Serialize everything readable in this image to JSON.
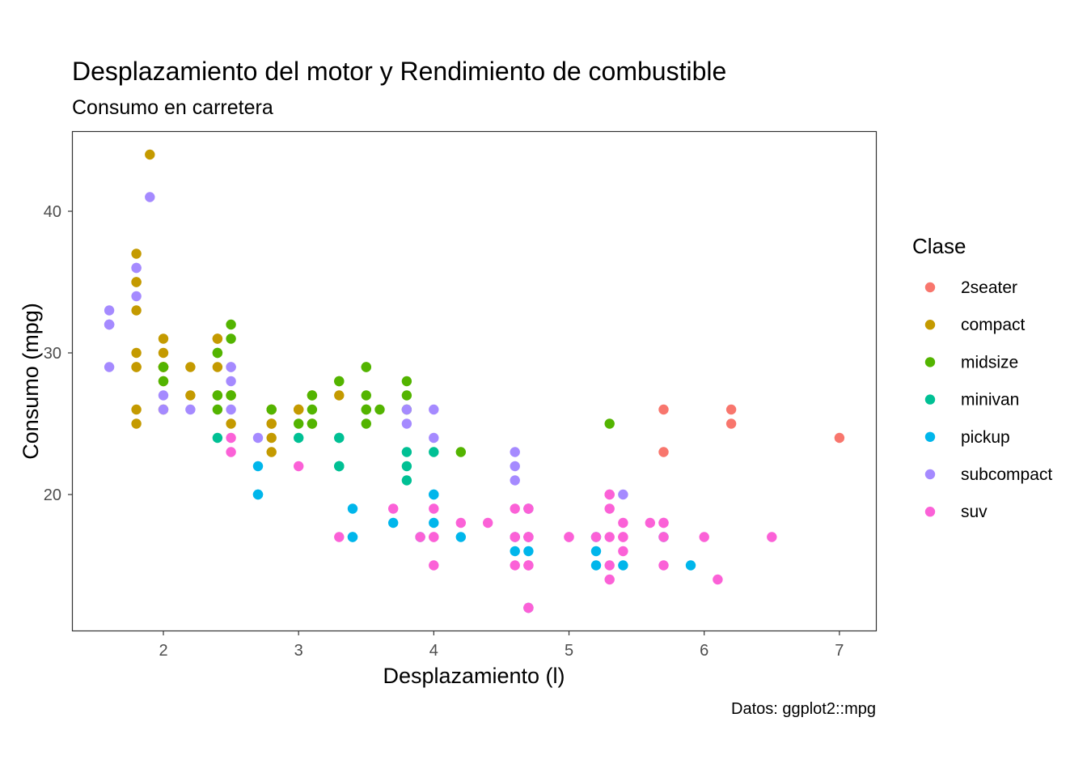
{
  "chart_data": {
    "type": "scatter",
    "title": "Desplazamiento del motor y Rendimiento de combustible",
    "subtitle": "Consumo en carretera",
    "xlabel": "Desplazamiento (l)",
    "ylabel": "Consumo (mpg)",
    "caption": "Datos: ggplot2::mpg",
    "xlim": [
      1.33,
      7.27
    ],
    "ylim": [
      10.4,
      45.6
    ],
    "x_ticks": [
      2,
      3,
      4,
      5,
      6,
      7
    ],
    "y_ticks": [
      20,
      30,
      40
    ],
    "grid": false,
    "legend": {
      "title": "Clase",
      "position": "right"
    },
    "series": [
      {
        "name": "2seater",
        "color": "#F8766D",
        "points": [
          [
            5.7,
            26
          ],
          [
            5.7,
            23
          ],
          [
            6.2,
            26
          ],
          [
            6.2,
            25
          ],
          [
            7.0,
            24
          ]
        ]
      },
      {
        "name": "compact",
        "color": "#C49A00",
        "points": [
          [
            1.8,
            29
          ],
          [
            1.8,
            29
          ],
          [
            2.0,
            31
          ],
          [
            2.0,
            30
          ],
          [
            2.8,
            26
          ],
          [
            2.8,
            26
          ],
          [
            3.1,
            27
          ],
          [
            1.8,
            26
          ],
          [
            1.8,
            25
          ],
          [
            2.0,
            28
          ],
          [
            2.0,
            29
          ],
          [
            2.8,
            25
          ],
          [
            2.8,
            25
          ],
          [
            3.1,
            25
          ],
          [
            2.2,
            27
          ],
          [
            2.2,
            29
          ],
          [
            2.4,
            31
          ],
          [
            2.4,
            31
          ],
          [
            3.0,
            26
          ],
          [
            3.0,
            26
          ],
          [
            3.3,
            27
          ],
          [
            1.8,
            30
          ],
          [
            1.8,
            33
          ],
          [
            1.8,
            35
          ],
          [
            1.8,
            37
          ],
          [
            1.8,
            35
          ],
          [
            2.0,
            29
          ],
          [
            2.0,
            26
          ],
          [
            2.0,
            29
          ],
          [
            2.0,
            29
          ],
          [
            2.8,
            24
          ],
          [
            1.9,
            44
          ],
          [
            2.0,
            29
          ],
          [
            2.5,
            27
          ],
          [
            2.5,
            27
          ],
          [
            2.5,
            25
          ],
          [
            2.8,
            23
          ],
          [
            2.4,
            27
          ],
          [
            2.4,
            29
          ]
        ]
      },
      {
        "name": "midsize",
        "color": "#53B400",
        "points": [
          [
            2.8,
            26
          ],
          [
            3.1,
            26
          ],
          [
            4.2,
            23
          ],
          [
            2.4,
            27
          ],
          [
            2.4,
            30
          ],
          [
            3.3,
            28
          ],
          [
            3.5,
            26
          ],
          [
            3.5,
            29
          ],
          [
            3.5,
            27
          ],
          [
            2.4,
            26
          ],
          [
            2.4,
            30
          ],
          [
            2.5,
            32
          ],
          [
            2.5,
            31
          ],
          [
            3.3,
            28
          ],
          [
            3.5,
            29
          ],
          [
            3.5,
            25
          ],
          [
            3.8,
            28
          ],
          [
            3.8,
            27
          ],
          [
            3.8,
            26
          ],
          [
            5.3,
            25
          ],
          [
            2.0,
            29
          ],
          [
            2.0,
            28
          ],
          [
            2.5,
            27
          ],
          [
            3.0,
            25
          ],
          [
            3.1,
            25
          ],
          [
            3.6,
            26
          ],
          [
            3.5,
            26
          ],
          [
            3.1,
            27
          ]
        ]
      },
      {
        "name": "minivan",
        "color": "#00C094",
        "points": [
          [
            2.4,
            24
          ],
          [
            3.0,
            24
          ],
          [
            3.3,
            22
          ],
          [
            3.3,
            22
          ],
          [
            3.3,
            24
          ],
          [
            3.3,
            24
          ],
          [
            3.3,
            22
          ],
          [
            3.8,
            22
          ],
          [
            3.8,
            21
          ],
          [
            3.8,
            23
          ],
          [
            4.0,
            23
          ]
        ]
      },
      {
        "name": "pickup",
        "color": "#00B6EB",
        "points": [
          [
            3.7,
            18
          ],
          [
            3.9,
            17
          ],
          [
            4.7,
            19
          ],
          [
            4.7,
            16
          ],
          [
            4.7,
            12
          ],
          [
            5.2,
            17
          ],
          [
            5.2,
            15
          ],
          [
            3.4,
            19
          ],
          [
            3.4,
            17
          ],
          [
            4.0,
            20
          ],
          [
            4.7,
            17
          ],
          [
            5.7,
            17
          ],
          [
            5.9,
            15
          ],
          [
            2.7,
            20
          ],
          [
            2.7,
            22
          ],
          [
            2.7,
            20
          ],
          [
            3.4,
            17
          ],
          [
            4.0,
            20
          ],
          [
            4.0,
            18
          ],
          [
            4.6,
            17
          ],
          [
            4.6,
            16
          ],
          [
            4.2,
            17
          ],
          [
            5.4,
            15
          ],
          [
            5.2,
            16
          ]
        ]
      },
      {
        "name": "subcompact",
        "color": "#A58AFF",
        "points": [
          [
            1.6,
            33
          ],
          [
            1.6,
            32
          ],
          [
            1.6,
            32
          ],
          [
            1.6,
            29
          ],
          [
            1.6,
            32
          ],
          [
            1.8,
            34
          ],
          [
            1.8,
            36
          ],
          [
            1.8,
            36
          ],
          [
            2.0,
            27
          ],
          [
            2.0,
            26
          ],
          [
            1.9,
            41
          ],
          [
            2.5,
            29
          ],
          [
            2.5,
            26
          ],
          [
            2.2,
            26
          ],
          [
            2.5,
            28
          ],
          [
            2.5,
            29
          ],
          [
            2.7,
            24
          ],
          [
            3.8,
            26
          ],
          [
            3.8,
            25
          ],
          [
            4.0,
            26
          ],
          [
            4.0,
            24
          ],
          [
            4.6,
            21
          ],
          [
            4.6,
            22
          ],
          [
            4.6,
            23
          ],
          [
            5.4,
            20
          ]
        ]
      },
      {
        "name": "suv",
        "color": "#FB61D7",
        "points": [
          [
            5.3,
            20
          ],
          [
            5.3,
            15
          ],
          [
            5.3,
            20
          ],
          [
            5.7,
            17
          ],
          [
            6.0,
            17
          ],
          [
            5.7,
            18
          ],
          [
            6.5,
            17
          ],
          [
            4.7,
            19
          ],
          [
            4.7,
            12
          ],
          [
            4.7,
            17
          ],
          [
            5.7,
            15
          ],
          [
            6.1,
            14
          ],
          [
            5.3,
            19
          ],
          [
            5.3,
            14
          ],
          [
            5.7,
            18
          ],
          [
            4.7,
            17
          ],
          [
            4.7,
            12
          ],
          [
            4.7,
            17
          ],
          [
            4.7,
            15
          ],
          [
            5.2,
            17
          ],
          [
            3.9,
            17
          ],
          [
            4.6,
            19
          ],
          [
            4.6,
            15
          ],
          [
            5.0,
            17
          ],
          [
            5.4,
            17
          ],
          [
            5.4,
            18
          ],
          [
            4.0,
            17
          ],
          [
            4.0,
            19
          ],
          [
            4.0,
            17
          ],
          [
            4.6,
            17
          ],
          [
            5.0,
            17
          ],
          [
            4.4,
            18
          ],
          [
            4.2,
            18
          ],
          [
            3.3,
            17
          ],
          [
            4.7,
            15
          ],
          [
            5.4,
            16
          ],
          [
            5.4,
            17
          ],
          [
            5.6,
            18
          ],
          [
            3.0,
            22
          ],
          [
            3.7,
            19
          ],
          [
            4.0,
            15
          ],
          [
            4.7,
            19
          ],
          [
            2.5,
            24
          ],
          [
            2.5,
            23
          ],
          [
            4.6,
            17
          ],
          [
            5.3,
            17
          ]
        ]
      }
    ]
  }
}
